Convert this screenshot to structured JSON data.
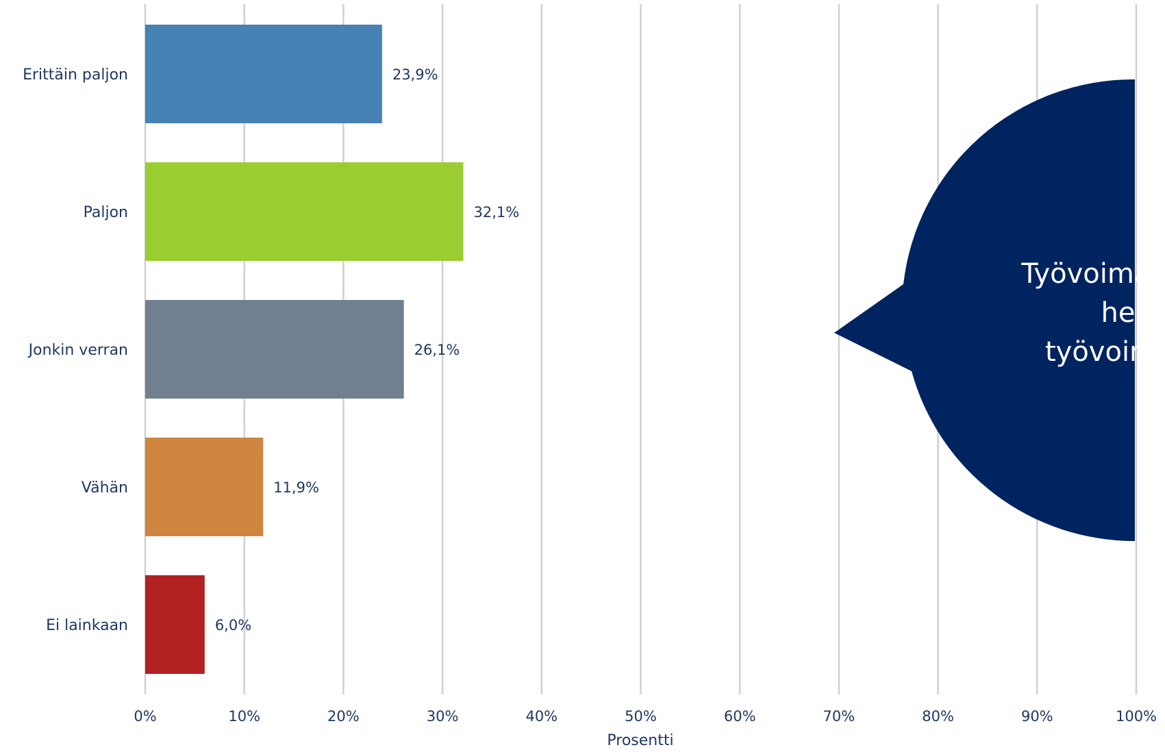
{
  "chart_data": {
    "type": "bar",
    "orientation": "horizontal",
    "categories": [
      "Erittäin paljon",
      "Paljon",
      "Jonkin verran",
      "Vähän",
      "Ei lainkaan"
    ],
    "values": [
      23.9,
      32.1,
      26.1,
      11.9,
      6.0
    ],
    "value_labels": [
      "23,9%",
      "32,1%",
      "26,1%",
      "11,9%",
      "6,0%"
    ],
    "bar_colors": [
      "#4682B4",
      "#9ACD32",
      "#708090",
      "#CD853F",
      "#B22222"
    ],
    "xlabel": "Prosentti",
    "ylabel": "",
    "xlim": [
      0,
      100
    ],
    "xticks": [
      0,
      10,
      20,
      30,
      40,
      50,
      60,
      70,
      80,
      90,
      100
    ],
    "xtick_labels": [
      "0%",
      "10%",
      "20%",
      "30%",
      "40%",
      "50%",
      "60%",
      "70%",
      "80%",
      "90%",
      "100%"
    ],
    "grid": "vertical"
  },
  "callout": {
    "lines": [
      "Työvoimar",
      "helpo",
      "työvoim"
    ],
    "fill": "#00245F",
    "text_color": "#ffffff"
  },
  "colors": {
    "text": "#1F3864",
    "grid": "#D0D0D0"
  }
}
